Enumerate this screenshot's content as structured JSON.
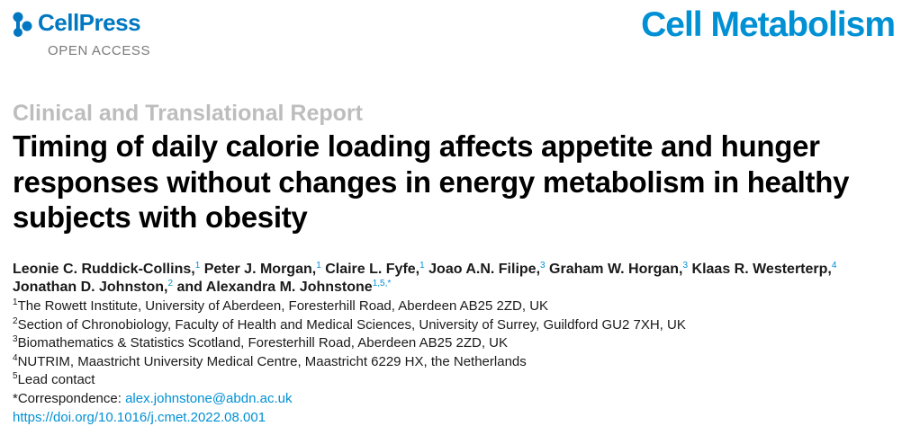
{
  "header": {
    "publisher": "CellPress",
    "access": "OPEN ACCESS",
    "journal": "Cell Metabolism",
    "brand_color": "#0078c1",
    "journal_color": "#0090d4"
  },
  "article": {
    "type": "Clinical and Translational Report",
    "title": "Timing of daily calorie loading affects appetite and hunger responses without changes in energy metabolism in healthy subjects with obesity"
  },
  "authors": [
    {
      "name": "Leonie C. Ruddick-Collins,",
      "sup": "1"
    },
    {
      "name": "Peter J. Morgan,",
      "sup": "1"
    },
    {
      "name": "Claire L. Fyfe,",
      "sup": "1"
    },
    {
      "name": "Joao A.N. Filipe,",
      "sup": "3"
    },
    {
      "name": "Graham W. Horgan,",
      "sup": "3"
    },
    {
      "name": "Klaas R. Westerterp,",
      "sup": "4"
    },
    {
      "name": "Jonathan D. Johnston,",
      "sup": "2"
    },
    {
      "name": "and Alexandra M. Johnstone",
      "sup": "1,5,*"
    }
  ],
  "affiliations": [
    {
      "num": "1",
      "text": "The Rowett Institute, University of Aberdeen, Foresterhill Road, Aberdeen AB25 2ZD, UK"
    },
    {
      "num": "2",
      "text": "Section of Chronobiology, Faculty of Health and Medical Sciences, University of Surrey, Guildford GU2 7XH, UK"
    },
    {
      "num": "3",
      "text": "Biomathematics & Statistics Scotland, Foresterhill Road, Aberdeen AB25 2ZD, UK"
    },
    {
      "num": "4",
      "text": "NUTRIM, Maastricht University Medical Centre, Maastricht 6229 HX, the Netherlands"
    },
    {
      "num": "5",
      "text": "Lead contact"
    }
  ],
  "correspondence": {
    "label": "*Correspondence:",
    "email": "alex.johnstone@abdn.ac.uk"
  },
  "doi": "https://doi.org/10.1016/j.cmet.2022.08.001"
}
